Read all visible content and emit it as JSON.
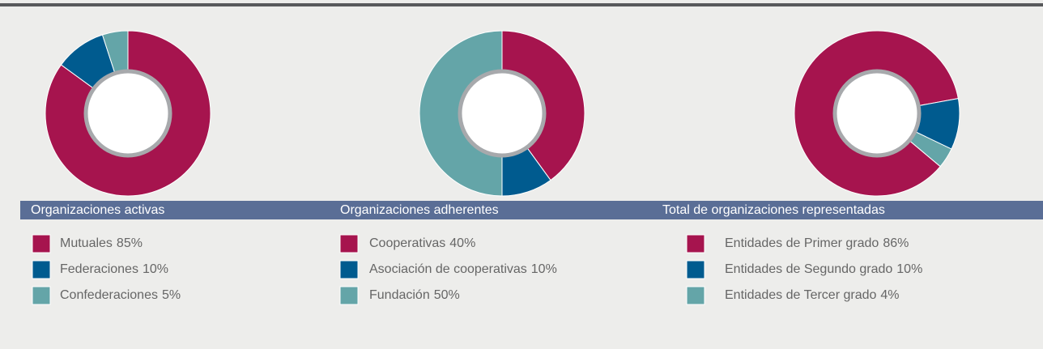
{
  "chart_data": [
    {
      "type": "pie",
      "title": "Organizaciones activas",
      "categories": [
        "Mutuales",
        "Federaciones",
        "Confederaciones"
      ],
      "values": [
        85,
        10,
        5
      ],
      "value_labels": [
        "85%",
        "10%",
        "5%"
      ],
      "colors": [
        "#a6144e",
        "#005b8f",
        "#64a5a8"
      ]
    },
    {
      "type": "pie",
      "title": "Organizaciones adherentes",
      "categories": [
        "Cooperativas",
        "Asociación de cooperativas",
        "Fundación"
      ],
      "values": [
        40,
        10,
        50
      ],
      "value_labels": [
        "40%",
        "10%",
        "50%"
      ],
      "colors": [
        "#a6144e",
        "#005b8f",
        "#64a5a8"
      ]
    },
    {
      "type": "pie",
      "title": "Total de organizaciones representadas",
      "categories": [
        "Entidades de Primer grado",
        "Entidades de Segundo grado",
        "Entidades de Tercer grado"
      ],
      "values": [
        86,
        10,
        4
      ],
      "value_labels": [
        "86%",
        "10%",
        "4%"
      ],
      "colors": [
        "#a6144e",
        "#005b8f",
        "#64a5a8"
      ]
    }
  ]
}
